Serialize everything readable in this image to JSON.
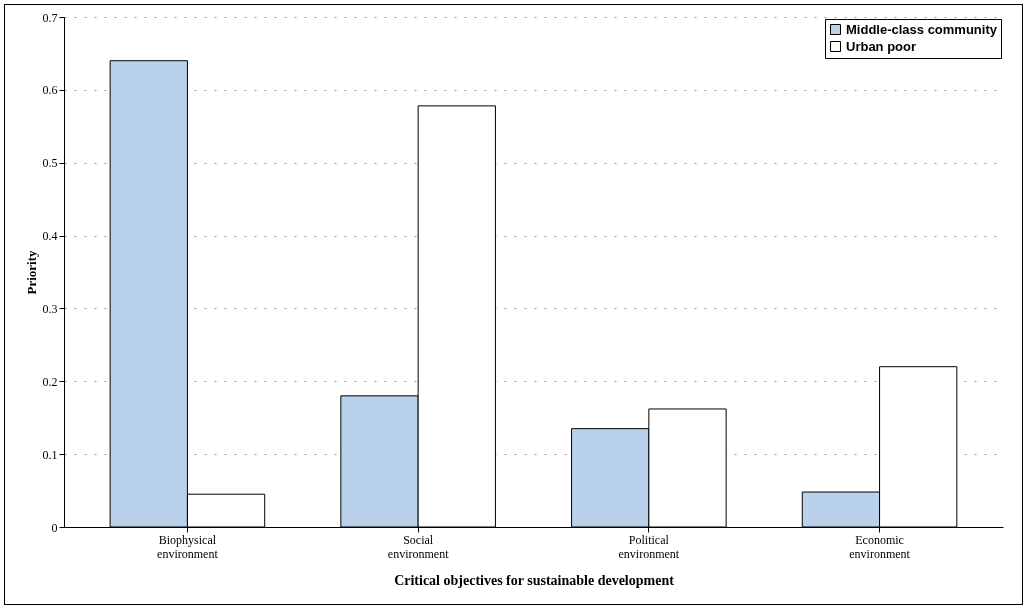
{
  "chart_data": {
    "type": "bar",
    "xlabel": "Critical objectives for sustainable development",
    "ylabel": "Priority",
    "categories": [
      "Biophysical environment",
      "Social environment",
      "Political environment",
      "Economic environment"
    ],
    "series": [
      {
        "name": "Middle-class community",
        "color": "#b9d1ea",
        "values": [
          0.64,
          0.18,
          0.135,
          0.048
        ]
      },
      {
        "name": "Urban poor",
        "color": "#ffffff",
        "values": [
          0.045,
          0.578,
          0.162,
          0.22
        ]
      }
    ],
    "ylim": [
      0,
      0.7
    ],
    "yticks": [
      0,
      0.1,
      0.2,
      0.3,
      0.4,
      0.5,
      0.6,
      0.7
    ],
    "grid": "y",
    "legend": "top right"
  }
}
